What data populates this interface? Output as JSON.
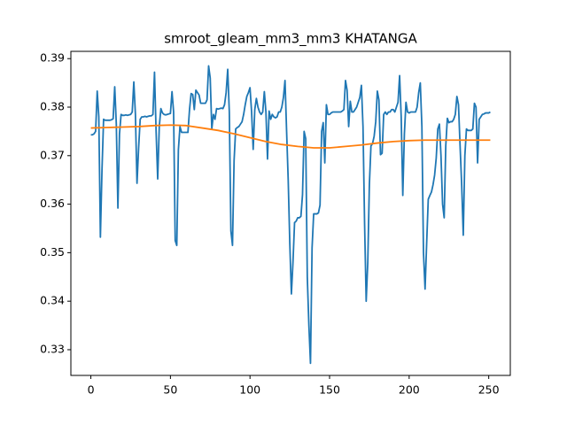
{
  "chart_data": {
    "type": "line",
    "title": "smroot_gleam_mm3_mm3 KHATANGA",
    "xlim": [
      -12.55,
      263.55
    ],
    "xticks": [
      0,
      50,
      100,
      150,
      200,
      250
    ],
    "ylim": [
      0.3247,
      0.3915
    ],
    "yticks": [
      {
        "value": 0.33,
        "label": "0.33"
      },
      {
        "value": 0.34,
        "label": "0.34"
      },
      {
        "value": 0.35,
        "label": "0.35"
      },
      {
        "value": 0.36,
        "label": "0.36"
      },
      {
        "value": 0.37,
        "label": "0.37"
      },
      {
        "value": 0.38,
        "label": "0.38"
      },
      {
        "value": 0.39,
        "label": "0.39"
      }
    ],
    "grid": false,
    "series": [
      {
        "color": "#1f77b4",
        "x": [
          0,
          1,
          2,
          3,
          4,
          5,
          6,
          7,
          8,
          9,
          10,
          11,
          12,
          13,
          14,
          15,
          16,
          17,
          18,
          19,
          20,
          21,
          22,
          23,
          24,
          25,
          26,
          27,
          28,
          29,
          30,
          31,
          32,
          33,
          34,
          35,
          36,
          37,
          38,
          39,
          40,
          41,
          42,
          43,
          44,
          45,
          46,
          47,
          48,
          49,
          50,
          51,
          52,
          53,
          54,
          55,
          56,
          57,
          58,
          59,
          60,
          61,
          62,
          63,
          64,
          65,
          66,
          67,
          68,
          69,
          70,
          71,
          72,
          73,
          74,
          75,
          76,
          77,
          78,
          79,
          80,
          81,
          82,
          83,
          84,
          85,
          86,
          87,
          88,
          89,
          90,
          91,
          92,
          93,
          94,
          95,
          96,
          97,
          98,
          99,
          100,
          101,
          102,
          103,
          104,
          105,
          106,
          107,
          108,
          109,
          110,
          111,
          112,
          113,
          114,
          115,
          116,
          117,
          118,
          119,
          120,
          121,
          122,
          123,
          124,
          125,
          126,
          127,
          128,
          129,
          130,
          131,
          132,
          133,
          134,
          135,
          136,
          137,
          138,
          139,
          140,
          141,
          142,
          143,
          144,
          145,
          146,
          147,
          148,
          149,
          150,
          151,
          152,
          153,
          154,
          155,
          156,
          157,
          158,
          159,
          160,
          161,
          162,
          163,
          164,
          165,
          166,
          167,
          168,
          169,
          170,
          171,
          172,
          173,
          174,
          175,
          176,
          177,
          178,
          179,
          180,
          181,
          182,
          183,
          184,
          185,
          186,
          187,
          188,
          189,
          190,
          191,
          192,
          193,
          194,
          195,
          196,
          197,
          198,
          199,
          200,
          201,
          202,
          203,
          204,
          205,
          206,
          207,
          208,
          209,
          210,
          211,
          212,
          213,
          214,
          215,
          216,
          217,
          218,
          219,
          220,
          221,
          222,
          223,
          224,
          225,
          226,
          227,
          228,
          229,
          230,
          231,
          232,
          233,
          234,
          235,
          236,
          237,
          238,
          239,
          240,
          241,
          242,
          243,
          244,
          245,
          246,
          247,
          248,
          249,
          250,
          251
        ],
        "values": [
          0.3743,
          0.3743,
          0.3745,
          0.375,
          0.3833,
          0.378,
          0.3532,
          0.367,
          0.3775,
          0.3773,
          0.3773,
          0.3773,
          0.3773,
          0.3774,
          0.3776,
          0.3842,
          0.3765,
          0.3592,
          0.3745,
          0.3785,
          0.3783,
          0.3783,
          0.3784,
          0.3783,
          0.3784,
          0.3785,
          0.379,
          0.3852,
          0.3785,
          0.3643,
          0.3715,
          0.3775,
          0.378,
          0.378,
          0.3781,
          0.378,
          0.3781,
          0.3782,
          0.3782,
          0.3785,
          0.3872,
          0.375,
          0.3652,
          0.376,
          0.3797,
          0.3788,
          0.3785,
          0.3784,
          0.3785,
          0.3786,
          0.3787,
          0.3832,
          0.379,
          0.3525,
          0.3515,
          0.3712,
          0.376,
          0.3748,
          0.3748,
          0.3748,
          0.3748,
          0.3748,
          0.3795,
          0.3828,
          0.3826,
          0.3795,
          0.3835,
          0.383,
          0.3825,
          0.3808,
          0.3808,
          0.3808,
          0.3808,
          0.3815,
          0.3885,
          0.386,
          0.3755,
          0.3785,
          0.3775,
          0.3797,
          0.3796,
          0.3797,
          0.3798,
          0.3797,
          0.3805,
          0.383,
          0.3878,
          0.379,
          0.3545,
          0.3515,
          0.369,
          0.3755,
          0.3758,
          0.376,
          0.3765,
          0.377,
          0.3785,
          0.3805,
          0.3822,
          0.383,
          0.384,
          0.379,
          0.3713,
          0.3795,
          0.3818,
          0.38,
          0.379,
          0.3785,
          0.379,
          0.3832,
          0.379,
          0.3693,
          0.3792,
          0.3775,
          0.3785,
          0.378,
          0.3778,
          0.378,
          0.379,
          0.379,
          0.38,
          0.382,
          0.3855,
          0.375,
          0.365,
          0.352,
          0.3415,
          0.348,
          0.3562,
          0.3565,
          0.3572,
          0.3572,
          0.3575,
          0.362,
          0.375,
          0.3735,
          0.345,
          0.335,
          0.3272,
          0.351,
          0.358,
          0.358,
          0.358,
          0.3582,
          0.3598,
          0.375,
          0.3768,
          0.3685,
          0.3805,
          0.3785,
          0.3785,
          0.3788,
          0.379,
          0.379,
          0.379,
          0.379,
          0.379,
          0.379,
          0.3792,
          0.3795,
          0.3855,
          0.3835,
          0.376,
          0.3812,
          0.379,
          0.379,
          0.3795,
          0.38,
          0.381,
          0.382,
          0.3845,
          0.376,
          0.356,
          0.34,
          0.348,
          0.364,
          0.372,
          0.3725,
          0.374,
          0.377,
          0.3833,
          0.3815,
          0.3702,
          0.3705,
          0.3785,
          0.379,
          0.3785,
          0.379,
          0.379,
          0.3795,
          0.3795,
          0.379,
          0.38,
          0.381,
          0.3865,
          0.378,
          0.3618,
          0.3745,
          0.381,
          0.379,
          0.3788,
          0.379,
          0.379,
          0.379,
          0.379,
          0.38,
          0.383,
          0.385,
          0.376,
          0.35,
          0.3425,
          0.352,
          0.361,
          0.3618,
          0.3625,
          0.364,
          0.366,
          0.3695,
          0.3755,
          0.3765,
          0.37,
          0.36,
          0.3572,
          0.372,
          0.3777,
          0.3768,
          0.377,
          0.377,
          0.3775,
          0.3785,
          0.3822,
          0.3805,
          0.372,
          0.364,
          0.3536,
          0.37,
          0.3755,
          0.3752,
          0.3752,
          0.3752,
          0.3755,
          0.3808,
          0.38,
          0.3685,
          0.3775,
          0.378,
          0.3785,
          0.3786,
          0.3788,
          0.3788,
          0.3788,
          0.379
        ]
      },
      {
        "color": "#ff7f0e",
        "x": [
          0,
          10,
          20,
          30,
          40,
          50,
          60,
          70,
          80,
          90,
          100,
          110,
          120,
          130,
          140,
          150,
          160,
          170,
          180,
          190,
          200,
          210,
          220,
          230,
          240,
          251
        ],
        "values": [
          0.3757,
          0.3758,
          0.3759,
          0.376,
          0.3762,
          0.3763,
          0.3762,
          0.3757,
          0.3752,
          0.3745,
          0.3737,
          0.3729,
          0.3723,
          0.3719,
          0.3716,
          0.3716,
          0.3719,
          0.3722,
          0.3726,
          0.3729,
          0.3731,
          0.3732,
          0.3732,
          0.3732,
          0.3732,
          0.3732
        ]
      }
    ]
  }
}
